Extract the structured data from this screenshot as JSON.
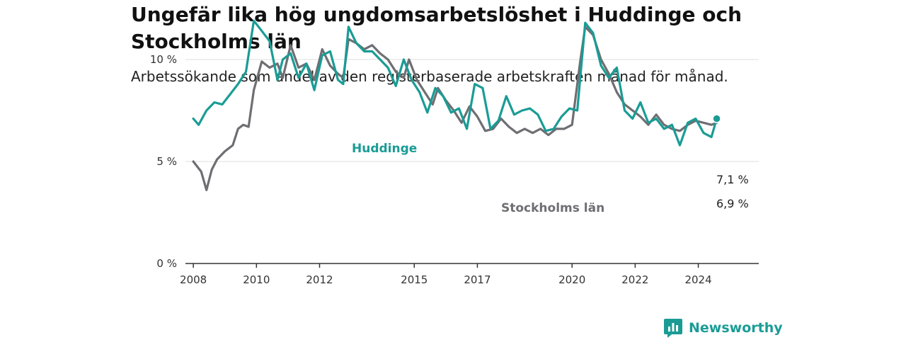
{
  "title": "Ungefär lika hög ungdomsarbetslöshet i Huddinge och Stockholms län",
  "subtitle": "Arbetssökande som andel av den registerbaserade arbetskraften månad för månad.",
  "brand": {
    "name": "Newsworthy",
    "icon": "newsworthy-logo-icon",
    "color": "#1a9c95"
  },
  "chart_data": {
    "type": "line",
    "x_ticks": [
      "2008",
      "2010",
      "2012",
      "2015",
      "2017",
      "2020",
      "2022",
      "2024"
    ],
    "y_ticks": [
      "0 %",
      "5 %",
      "10 %"
    ],
    "ylim": [
      0,
      12
    ],
    "xlim": [
      "2007-10",
      "2025-12"
    ],
    "grid": true,
    "series": [
      {
        "name": "Stockholms län",
        "color": "#6e6e73",
        "end_label": "6,9 %",
        "points": [
          [
            "2008-01",
            5.0
          ],
          [
            "2008-04",
            4.5
          ],
          [
            "2008-06",
            3.6
          ],
          [
            "2008-08",
            4.6
          ],
          [
            "2008-10",
            5.1
          ],
          [
            "2009-01",
            5.5
          ],
          [
            "2009-04",
            5.8
          ],
          [
            "2009-06",
            6.6
          ],
          [
            "2009-08",
            6.8
          ],
          [
            "2009-10",
            6.7
          ],
          [
            "2009-12",
            8.5
          ],
          [
            "2010-03",
            9.9
          ],
          [
            "2010-06",
            9.6
          ],
          [
            "2010-09",
            9.8
          ],
          [
            "2010-11",
            9.1
          ],
          [
            "2011-02",
            10.7
          ],
          [
            "2011-05",
            9.6
          ],
          [
            "2011-08",
            9.8
          ],
          [
            "2011-11",
            9.0
          ],
          [
            "2012-02",
            10.5
          ],
          [
            "2012-05",
            9.7
          ],
          [
            "2012-08",
            9.3
          ],
          [
            "2012-10",
            9.1
          ],
          [
            "2012-12",
            11.0
          ],
          [
            "2013-03",
            10.8
          ],
          [
            "2013-06",
            10.5
          ],
          [
            "2013-09",
            10.7
          ],
          [
            "2013-12",
            10.3
          ],
          [
            "2014-03",
            10.0
          ],
          [
            "2014-06",
            9.4
          ],
          [
            "2014-09",
            9.1
          ],
          [
            "2014-11",
            10.0
          ],
          [
            "2015-02",
            9.0
          ],
          [
            "2015-05",
            8.4
          ],
          [
            "2015-08",
            7.8
          ],
          [
            "2015-10",
            8.6
          ],
          [
            "2016-01",
            8.0
          ],
          [
            "2016-04",
            7.5
          ],
          [
            "2016-07",
            6.9
          ],
          [
            "2016-10",
            7.7
          ],
          [
            "2017-01",
            7.2
          ],
          [
            "2017-04",
            6.5
          ],
          [
            "2017-07",
            6.6
          ],
          [
            "2017-10",
            7.1
          ],
          [
            "2018-01",
            6.7
          ],
          [
            "2018-04",
            6.4
          ],
          [
            "2018-07",
            6.6
          ],
          [
            "2018-10",
            6.4
          ],
          [
            "2019-01",
            6.6
          ],
          [
            "2019-04",
            6.3
          ],
          [
            "2019-07",
            6.6
          ],
          [
            "2019-10",
            6.6
          ],
          [
            "2020-01",
            6.8
          ],
          [
            "2020-04",
            9.8
          ],
          [
            "2020-06",
            11.6
          ],
          [
            "2020-09",
            11.2
          ],
          [
            "2020-12",
            10.0
          ],
          [
            "2021-03",
            9.3
          ],
          [
            "2021-06",
            8.4
          ],
          [
            "2021-09",
            7.8
          ],
          [
            "2021-12",
            7.5
          ],
          [
            "2022-03",
            7.2
          ],
          [
            "2022-06",
            6.8
          ],
          [
            "2022-09",
            7.3
          ],
          [
            "2022-12",
            6.8
          ],
          [
            "2023-03",
            6.6
          ],
          [
            "2023-06",
            6.5
          ],
          [
            "2023-09",
            6.8
          ],
          [
            "2023-12",
            7.0
          ],
          [
            "2024-03",
            6.9
          ],
          [
            "2024-06",
            6.8
          ],
          [
            "2024-08",
            6.9
          ]
        ]
      },
      {
        "name": "Huddinge",
        "color": "#1a9c95",
        "end_label": "7,1 %",
        "points": [
          [
            "2008-01",
            7.1
          ],
          [
            "2008-03",
            6.8
          ],
          [
            "2008-06",
            7.5
          ],
          [
            "2008-09",
            7.9
          ],
          [
            "2008-12",
            7.8
          ],
          [
            "2009-03",
            8.3
          ],
          [
            "2009-06",
            8.8
          ],
          [
            "2009-09",
            9.4
          ],
          [
            "2009-12",
            11.9
          ],
          [
            "2010-03",
            11.4
          ],
          [
            "2010-06",
            10.9
          ],
          [
            "2010-09",
            9.0
          ],
          [
            "2010-11",
            10.0
          ],
          [
            "2011-02",
            10.3
          ],
          [
            "2011-05",
            9.1
          ],
          [
            "2011-08",
            9.8
          ],
          [
            "2011-11",
            8.5
          ],
          [
            "2012-02",
            10.2
          ],
          [
            "2012-05",
            10.4
          ],
          [
            "2012-08",
            9.0
          ],
          [
            "2012-10",
            8.8
          ],
          [
            "2012-12",
            11.6
          ],
          [
            "2013-03",
            10.8
          ],
          [
            "2013-06",
            10.4
          ],
          [
            "2013-09",
            10.4
          ],
          [
            "2013-12",
            10.0
          ],
          [
            "2014-03",
            9.6
          ],
          [
            "2014-06",
            8.7
          ],
          [
            "2014-09",
            10.0
          ],
          [
            "2014-12",
            9.0
          ],
          [
            "2015-03",
            8.4
          ],
          [
            "2015-06",
            7.4
          ],
          [
            "2015-09",
            8.6
          ],
          [
            "2015-12",
            8.2
          ],
          [
            "2016-03",
            7.4
          ],
          [
            "2016-06",
            7.6
          ],
          [
            "2016-09",
            6.6
          ],
          [
            "2016-12",
            8.8
          ],
          [
            "2017-03",
            8.6
          ],
          [
            "2017-06",
            6.6
          ],
          [
            "2017-09",
            7.0
          ],
          [
            "2017-12",
            8.2
          ],
          [
            "2018-03",
            7.3
          ],
          [
            "2018-06",
            7.5
          ],
          [
            "2018-09",
            7.6
          ],
          [
            "2018-12",
            7.3
          ],
          [
            "2019-03",
            6.5
          ],
          [
            "2019-06",
            6.6
          ],
          [
            "2019-09",
            7.2
          ],
          [
            "2019-12",
            7.6
          ],
          [
            "2020-03",
            7.5
          ],
          [
            "2020-06",
            11.8
          ],
          [
            "2020-09",
            11.3
          ],
          [
            "2020-12",
            9.7
          ],
          [
            "2021-03",
            9.1
          ],
          [
            "2021-06",
            9.6
          ],
          [
            "2021-09",
            7.5
          ],
          [
            "2021-12",
            7.1
          ],
          [
            "2022-03",
            7.9
          ],
          [
            "2022-06",
            6.9
          ],
          [
            "2022-09",
            7.1
          ],
          [
            "2022-12",
            6.6
          ],
          [
            "2023-03",
            6.8
          ],
          [
            "2023-06",
            5.8
          ],
          [
            "2023-09",
            6.9
          ],
          [
            "2023-12",
            7.1
          ],
          [
            "2024-03",
            6.4
          ],
          [
            "2024-06",
            6.2
          ],
          [
            "2024-08",
            7.1
          ]
        ]
      }
    ]
  }
}
